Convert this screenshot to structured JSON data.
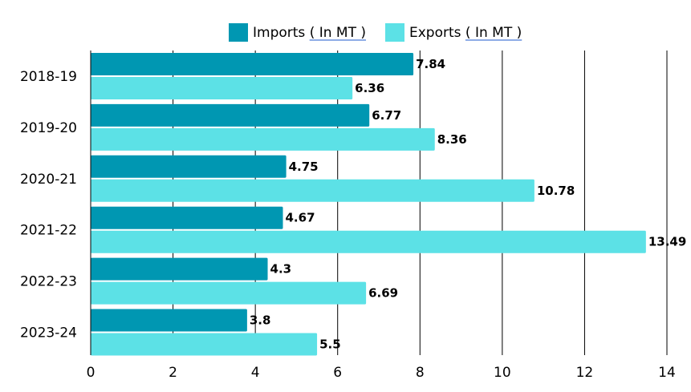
{
  "chart_data": {
    "type": "bar",
    "orientation": "horizontal",
    "categories": [
      "2018-19",
      "2019-20",
      "2020-21",
      "2021-22",
      "2022-23",
      "2023-24"
    ],
    "series": [
      {
        "name": "Imports ( In MT )",
        "name_parts": {
          "lead": "Imports ",
          "linked": "( In MT )"
        },
        "color": "#0097b2",
        "values": [
          7.84,
          6.77,
          4.75,
          4.67,
          4.3,
          3.8
        ]
      },
      {
        "name": "Exports ( In MT )",
        "name_parts": {
          "lead": "Exports ",
          "linked": "( In MT )"
        },
        "color": "#5ce1e6",
        "values": [
          6.36,
          8.36,
          10.78,
          13.49,
          6.69,
          5.5
        ]
      }
    ],
    "xlim": [
      0,
      14
    ],
    "x_ticks": [
      0,
      2,
      4,
      6,
      8,
      10,
      12,
      14
    ],
    "grid": "vertical",
    "legend": "top-center"
  }
}
